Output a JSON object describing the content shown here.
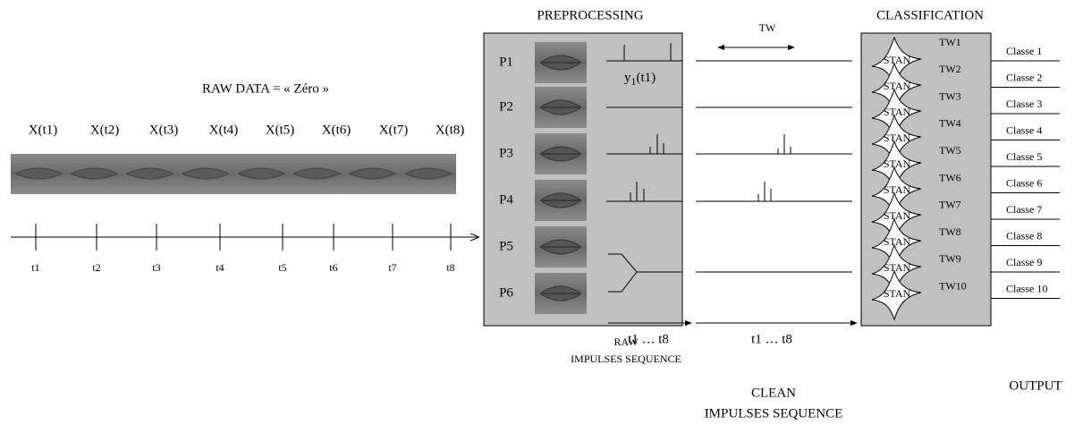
{
  "raw_data": {
    "title": "RAW DATA = « Zéro »",
    "frames": [
      "X(t1)",
      "X(t2)",
      "X(t3)",
      "X(t4)",
      "X(t5)",
      "X(t6)",
      "X(t7)",
      "X(t8)"
    ],
    "times": [
      "t1",
      "t2",
      "t3",
      "t4",
      "t5",
      "t6",
      "t7",
      "t8"
    ]
  },
  "preprocessing": {
    "title": "PREPROCESSING",
    "primitives": [
      "P1",
      "P2",
      "P3",
      "P4",
      "P5",
      "P6"
    ],
    "signal_label": {
      "base": "y",
      "sub": "1",
      "arg": "(t1)"
    },
    "axis_label": "t1 … t8",
    "caption": [
      "RAW",
      "IMPULSES SEQUENCE"
    ]
  },
  "window": {
    "label": "TW"
  },
  "clean": {
    "axis_label": "t1 … t8",
    "caption": [
      "CLEAN",
      "IMPULSES SEQUENCE"
    ]
  },
  "classification": {
    "title": "CLASSIFICATION",
    "neurons": [
      "STAN",
      "STAN",
      "STAN",
      "STAN",
      "STAN",
      "STAN",
      "STAN",
      "STAN",
      "STAN",
      "STAN"
    ],
    "windows": [
      "TW1",
      "TW2",
      "TW3",
      "TW4",
      "TW5",
      "TW6",
      "TW7",
      "TW8",
      "TW9",
      "TW10"
    ],
    "classes": [
      "Classe 1",
      "Classe 2",
      "Classe 3",
      "Classe 4",
      "Classe 5",
      "Classe 6",
      "Classe 7",
      "Classe 8",
      "Classe 9",
      "Classe 10"
    ]
  },
  "output": {
    "label": "OUTPUT"
  }
}
